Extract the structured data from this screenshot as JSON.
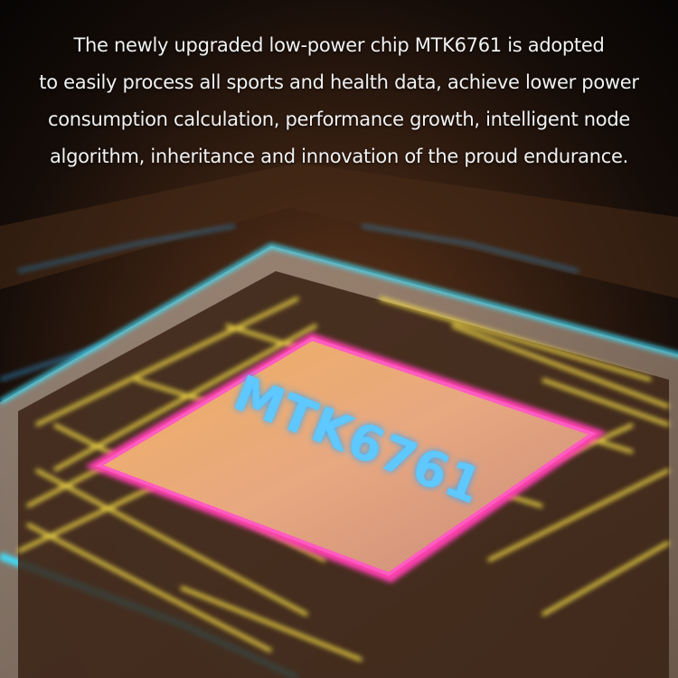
{
  "caption": {
    "lines": [
      "The newly upgraded low-power chip MTK6761 is adopted",
      "to easily process all sports and health data, achieve lower power",
      "consumption calculation, performance growth, intelligent node",
      "algorithm, inheritance and innovation of the proud endurance."
    ]
  },
  "chip": {
    "label": "MTK6761",
    "label_color": "#5ec8ff",
    "die_edge_color": "#ff3fb0",
    "package_edge_color": "#3fe0ff",
    "trace_color": "#ffe84a"
  }
}
